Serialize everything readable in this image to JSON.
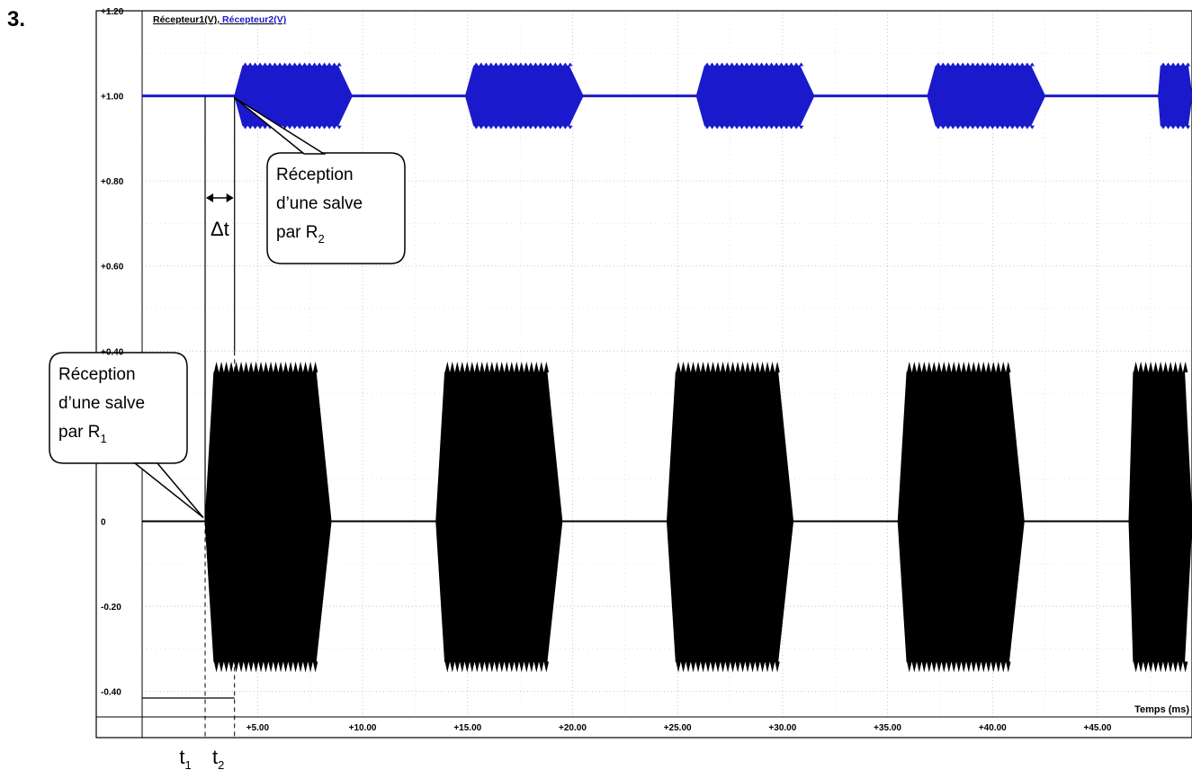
{
  "question_number": "3.",
  "chart_data": {
    "type": "line",
    "legend": {
      "parts": [
        {
          "text": "Récepteur1(V)",
          "color": "#000000"
        },
        {
          "text": ", ",
          "color": "#000000"
        },
        {
          "text": "Récepteur2(V)",
          "color": "#1a1acc"
        }
      ],
      "placement": "top-left"
    },
    "xlabel": "Temps (ms)",
    "xlim": [
      -0.5,
      49.5
    ],
    "ylim": [
      -0.46,
      1.2
    ],
    "x_ticks": [
      "+5.00",
      "+10.00",
      "+15.00",
      "+20.00",
      "+25.00",
      "+30.00",
      "+35.00",
      "+40.00",
      "+45.00"
    ],
    "x_tick_values": [
      5,
      10,
      15,
      20,
      25,
      30,
      35,
      40,
      45
    ],
    "y_ticks": [
      "+1.20",
      "+1.00",
      "+0.80",
      "+0.60",
      "+0.40",
      "0",
      "-0.20",
      "-0.40"
    ],
    "y_tick_values": [
      1.2,
      1.0,
      0.8,
      0.6,
      0.4,
      0.0,
      -0.2,
      -0.4
    ],
    "grid": true,
    "series": [
      {
        "name": "Récepteur1(V)",
        "color": "#000000",
        "baseline": 0.0,
        "amplitude_max": 0.35,
        "amplitude_min": -0.33,
        "bursts_ms": [
          [
            2.5,
            8.5
          ],
          [
            13.5,
            19.5
          ],
          [
            24.5,
            30.5
          ],
          [
            35.5,
            41.5
          ],
          [
            46.5,
            49.5
          ]
        ]
      },
      {
        "name": "Récepteur2(V)",
        "color": "#1a1acc",
        "baseline": 1.0,
        "amplitude_max": 0.07,
        "amplitude_min": -0.07,
        "bursts_ms": [
          [
            3.9,
            9.5
          ],
          [
            14.9,
            20.5
          ],
          [
            25.9,
            31.5
          ],
          [
            36.9,
            42.5
          ],
          [
            47.9,
            49.5
          ]
        ]
      }
    ],
    "annotations": {
      "callout_r2": {
        "lines": [
          "Réception",
          "d’une salve",
          "par R"
        ],
        "subscript": "2"
      },
      "callout_r1": {
        "lines": [
          "Réception",
          "d’une salve",
          "par R"
        ],
        "subscript": "1"
      },
      "delta_label": "Δt",
      "t1_label": {
        "main": "t",
        "sub": "1"
      },
      "t2_label": {
        "main": "t",
        "sub": "2"
      },
      "t1_ms": 2.5,
      "t2_ms": 3.9
    }
  }
}
